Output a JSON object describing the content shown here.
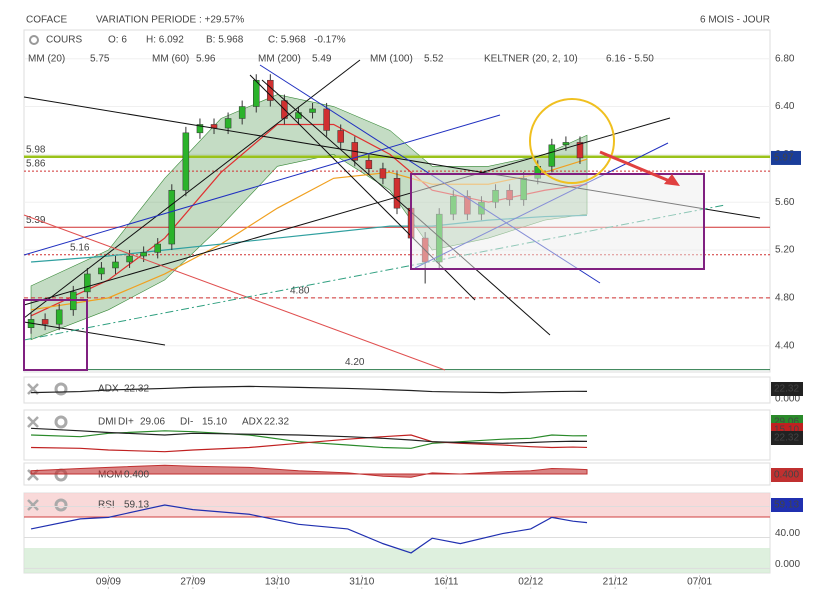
{
  "toolbar": {
    "name": "COFACE",
    "variation": "VARIATION PERIODE : +29.57%",
    "period": "6 MOIS - JOUR",
    "quote": [
      "COURS",
      "O: 6",
      "H: 6.092",
      "B: 5.968",
      "C: 5.968"
    ],
    "change": "-0.17%",
    "indicators": [
      {
        "name": "MM (20)",
        "value": "5.75",
        "color": "#e03030"
      },
      {
        "name": "MM (60)",
        "value": "5.96",
        "color": "#f0a020"
      },
      {
        "name": "MM (200)",
        "value": "5.49",
        "color": "#30a0a0"
      },
      {
        "name": "MM (100)",
        "value": "5.52",
        "color": "#60c0e0"
      },
      {
        "name": "KELTNER (20, 2, 10)",
        "value": "6.16 - 5.50",
        "color": "#3a8a3a"
      }
    ]
  },
  "chart_data": [
    {
      "type": "candlestick",
      "xlim": [
        0,
        106
      ],
      "ylim": [
        4.18,
        7.04
      ],
      "xticks": [
        {
          "value": 12,
          "label": "09/09"
        },
        {
          "value": 24,
          "label": "27/09"
        },
        {
          "value": 36,
          "label": "13/10"
        },
        {
          "value": 48,
          "label": "31/10"
        },
        {
          "value": 60,
          "label": "16/11"
        },
        {
          "value": 72,
          "label": "02/12"
        },
        {
          "value": 84,
          "label": "21/12"
        },
        {
          "value": 96,
          "label": "07/01"
        }
      ],
      "yticks": [
        {
          "value": 4.4,
          "label": "4.40"
        },
        {
          "value": 4.8,
          "label": "4.80"
        },
        {
          "value": 5.2,
          "label": "5.20"
        },
        {
          "value": 5.6,
          "label": "5.60"
        },
        {
          "value": 6.0,
          "label": "6.00"
        },
        {
          "value": 6.4,
          "label": "6.40"
        },
        {
          "value": 6.8,
          "label": "6.80"
        }
      ],
      "up_color": "#2bb32b",
      "down_color": "#d03030",
      "x": [
        1,
        3,
        5,
        7,
        9,
        11,
        13,
        15,
        17,
        19,
        21,
        23,
        25,
        27,
        29,
        31,
        33,
        35,
        37,
        39,
        41,
        43,
        45,
        47,
        49,
        51,
        53,
        55,
        57,
        59,
        61,
        63,
        65,
        67,
        69,
        71,
        73,
        75,
        77,
        79
      ],
      "opens": [
        4.55,
        4.62,
        4.58,
        4.7,
        4.85,
        5.0,
        5.05,
        5.1,
        5.15,
        5.18,
        5.25,
        5.7,
        6.18,
        6.25,
        6.22,
        6.3,
        6.4,
        6.62,
        6.45,
        6.3,
        6.35,
        6.38,
        6.2,
        6.1,
        5.95,
        5.88,
        5.8,
        5.55,
        5.3,
        5.1,
        5.5,
        5.65,
        5.5,
        5.6,
        5.7,
        5.62,
        5.8,
        5.9,
        6.08,
        6.1
      ],
      "highs": [
        4.67,
        4.67,
        4.75,
        4.9,
        5.05,
        5.1,
        5.15,
        5.2,
        5.23,
        5.3,
        5.75,
        6.23,
        6.3,
        6.3,
        6.35,
        6.45,
        6.67,
        6.67,
        6.5,
        6.4,
        6.43,
        6.43,
        6.25,
        6.15,
        6.0,
        5.93,
        5.85,
        5.6,
        5.35,
        5.55,
        5.7,
        5.7,
        5.65,
        5.75,
        5.75,
        5.85,
        5.95,
        6.13,
        6.15,
        6.15
      ],
      "lows": [
        4.5,
        4.53,
        4.53,
        4.65,
        4.8,
        4.95,
        5.0,
        5.05,
        5.1,
        5.13,
        5.2,
        5.65,
        6.13,
        6.17,
        6.17,
        6.25,
        6.35,
        6.4,
        6.25,
        6.25,
        6.3,
        6.15,
        6.05,
        5.9,
        5.83,
        5.75,
        5.5,
        5.25,
        4.92,
        5.05,
        5.45,
        5.45,
        5.45,
        5.55,
        5.57,
        5.57,
        5.75,
        5.85,
        6.03,
        5.92
      ],
      "closes": [
        4.62,
        4.58,
        4.7,
        4.85,
        5.0,
        5.05,
        5.1,
        5.15,
        5.18,
        5.25,
        5.7,
        6.18,
        6.25,
        6.22,
        6.3,
        6.4,
        6.62,
        6.45,
        6.3,
        6.35,
        6.38,
        6.2,
        6.1,
        5.95,
        5.88,
        5.8,
        5.55,
        5.3,
        5.1,
        5.5,
        5.65,
        5.5,
        5.6,
        5.7,
        5.62,
        5.8,
        5.9,
        6.08,
        6.1,
        5.97
      ],
      "band": {
        "color": "#3a8a3a",
        "x": [
          1,
          12,
          20,
          28,
          36,
          44,
          52,
          58,
          66,
          74,
          80
        ],
        "upper": [
          4.9,
          5.2,
          5.8,
          6.3,
          6.5,
          6.4,
          6.2,
          5.9,
          5.9,
          6.0,
          6.16
        ],
        "lower": [
          4.45,
          4.7,
          4.95,
          5.4,
          5.9,
          6.0,
          5.7,
          5.2,
          5.3,
          5.45,
          5.5
        ]
      },
      "series": [
        {
          "name": "MM (20)",
          "color": "#e03030",
          "x": [
            1,
            12,
            20,
            28,
            36,
            44,
            52,
            58,
            66,
            74,
            80
          ],
          "values": [
            4.65,
            4.95,
            5.3,
            5.85,
            6.25,
            6.25,
            6.0,
            5.7,
            5.6,
            5.7,
            5.75
          ]
        },
        {
          "name": "MM (60)",
          "color": "#f0a020",
          "x": [
            1,
            12,
            20,
            28,
            36,
            44,
            52,
            58,
            66,
            74,
            80
          ],
          "values": [
            4.7,
            4.8,
            5.0,
            5.25,
            5.55,
            5.8,
            5.85,
            5.75,
            5.75,
            5.85,
            5.96
          ]
        },
        {
          "name": "MM (200)",
          "color": "#30a0a0",
          "x": [
            1,
            12,
            20,
            28,
            36,
            44,
            52,
            58,
            66,
            74,
            80
          ],
          "values": [
            5.1,
            5.15,
            5.2,
            5.25,
            5.3,
            5.35,
            5.4,
            5.4,
            5.45,
            5.48,
            5.49
          ]
        }
      ],
      "levels": [
        {
          "value": 5.98,
          "label": "5.98",
          "color": "#9ac21a"
        },
        {
          "value": 5.86,
          "label": "5.86",
          "color": "#d03030"
        },
        {
          "value": 5.39,
          "label": "5.39",
          "color": "#d03030"
        },
        {
          "value": 5.16,
          "label": "5.16",
          "color": "#d03030"
        },
        {
          "value": 4.8,
          "label": "4.80",
          "color": "#d03030"
        },
        {
          "value": 4.2,
          "label": "4.20",
          "color": "#2a7a4a"
        }
      ],
      "last": {
        "value": 5.97,
        "label": "5.97"
      }
    },
    {
      "type": "line",
      "title": "ADX",
      "ylim": [
        0,
        50
      ],
      "yticks": [
        {
          "value": 0,
          "label": "0.000"
        }
      ],
      "x": [
        1,
        8,
        12,
        20,
        24,
        32,
        39,
        46,
        51,
        55,
        58,
        62,
        68,
        72,
        75,
        78,
        80
      ],
      "series": [
        {
          "name": "ADX",
          "color": "#222222",
          "last_label": "22.32",
          "values": [
            20,
            22,
            25,
            28,
            30,
            32,
            30,
            28,
            26,
            24,
            22,
            21,
            20,
            21,
            22,
            22.5,
            22.32
          ]
        }
      ]
    },
    {
      "type": "line",
      "title": "DMI",
      "ylim": [
        0,
        60
      ],
      "yticks": [],
      "x": [
        1,
        8,
        12,
        20,
        24,
        32,
        39,
        46,
        51,
        55,
        58,
        62,
        68,
        72,
        75,
        78,
        80
      ],
      "series": [
        {
          "name": "DI+",
          "color": "#2a8a2a",
          "last_label": "29.06",
          "values": [
            30,
            28,
            32,
            35,
            34,
            30,
            22,
            18,
            15,
            14,
            20,
            22,
            25,
            26,
            30,
            29,
            29.06
          ]
        },
        {
          "name": "DI-",
          "color": "#c02020",
          "last_label": "15.10",
          "values": [
            15,
            14,
            12,
            10,
            12,
            15,
            20,
            25,
            28,
            30,
            22,
            20,
            18,
            16,
            15,
            15.5,
            15.1
          ]
        },
        {
          "name": "ADX",
          "color": "#222222",
          "last_label": "22.32",
          "values": [
            38,
            35,
            33,
            30,
            32,
            31,
            30,
            28,
            26,
            24,
            22,
            21,
            20,
            21,
            22,
            22.5,
            22.32
          ]
        }
      ]
    },
    {
      "type": "area",
      "title": "MOM",
      "ylim": [
        -1,
        1
      ],
      "yticks": [],
      "x": [
        1,
        8,
        12,
        20,
        24,
        32,
        39,
        46,
        51,
        55,
        58,
        62,
        68,
        72,
        75,
        78,
        80
      ],
      "series": [
        {
          "name": "MOM",
          "color": "#c03030",
          "last_label": "0.400",
          "values": [
            0.3,
            0.5,
            0.6,
            0.8,
            0.7,
            0.6,
            0.3,
            0.1,
            -0.2,
            -0.3,
            0.1,
            0.0,
            0.2,
            0.3,
            0.5,
            0.45,
            0.4
          ]
        }
      ]
    },
    {
      "type": "line",
      "title": "RSI",
      "ylim": [
        -6,
        97.5
      ],
      "yticks": [
        {
          "value": 80,
          "label": "80.00"
        },
        {
          "value": 40,
          "label": "40.00"
        },
        {
          "value": 0,
          "label": "0.000"
        }
      ],
      "x": [
        1,
        8,
        12,
        20,
        24,
        32,
        39,
        46,
        51,
        55,
        58,
        62,
        68,
        72,
        75,
        78,
        80
      ],
      "series": [
        {
          "name": "RSI",
          "color": "#2030b0",
          "last_label": "59.13",
          "values": [
            51,
            64,
            66,
            82,
            76,
            70,
            57,
            51,
            32,
            20,
            39,
            32,
            45,
            51,
            66,
            61,
            59.13
          ]
        }
      ]
    }
  ]
}
